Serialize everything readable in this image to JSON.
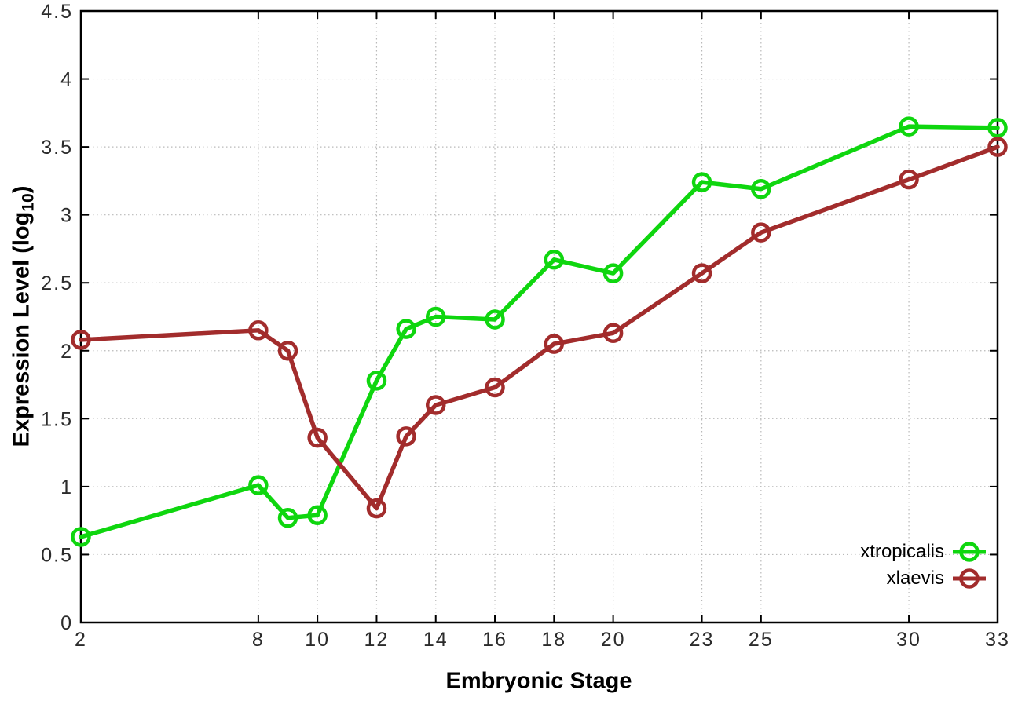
{
  "chart_data": {
    "type": "line",
    "title": "",
    "xlabel": "Embryonic Stage",
    "ylabel": {
      "prefix": "Expression Level (log",
      "subscript": "10",
      "suffix": ")"
    },
    "xlim": [
      2,
      33
    ],
    "ylim": [
      0,
      4.5
    ],
    "grid": true,
    "legend_position": "bottom-right",
    "x_ticks": [
      2,
      8,
      10,
      12,
      14,
      16,
      18,
      20,
      23,
      25,
      30,
      33
    ],
    "y_ticks": [
      0,
      0.5,
      1,
      1.5,
      2,
      2.5,
      3,
      3.5,
      4,
      4.5
    ],
    "x": [
      2,
      8,
      9,
      10,
      12,
      13,
      14,
      16,
      18,
      20,
      23,
      25,
      30,
      33
    ],
    "series": [
      {
        "name": "xtropicalis",
        "color": "#0fd60f",
        "marker": "open-circle",
        "values": [
          0.63,
          1.01,
          0.77,
          0.79,
          1.78,
          2.16,
          2.25,
          2.23,
          2.67,
          2.57,
          3.24,
          3.19,
          3.65,
          3.64
        ]
      },
      {
        "name": "xlaevis",
        "color": "#a22c2c",
        "marker": "open-circle",
        "values": [
          2.08,
          2.15,
          2.0,
          1.36,
          0.84,
          1.37,
          1.6,
          1.73,
          2.05,
          2.13,
          2.57,
          2.87,
          3.26,
          3.5
        ]
      }
    ],
    "colors": {
      "grid": "#b9b9b9",
      "axis": "#000000",
      "tick_label": "#2b2b2b",
      "background": "#ffffff"
    }
  }
}
